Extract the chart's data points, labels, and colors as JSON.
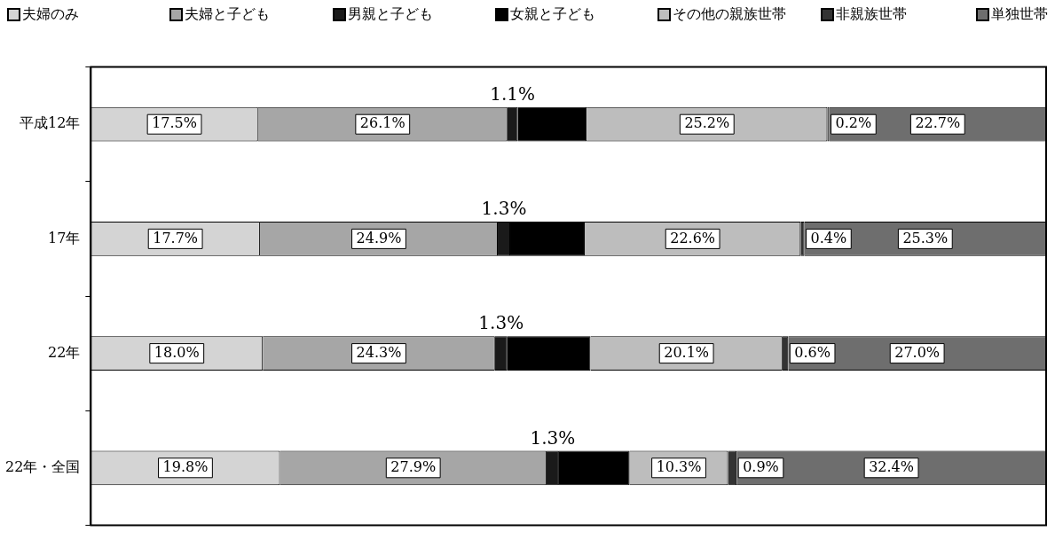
{
  "chart_data": {
    "type": "bar",
    "orientation": "horizontal",
    "stacked": true,
    "legend": "top",
    "categories": [
      "平成12年",
      "17年",
      "22年",
      "22年・全国"
    ],
    "series": [
      {
        "name": "夫婦のみ",
        "color": "#d4d4d4",
        "values": [
          17.5,
          17.7,
          18.0,
          19.8
        ],
        "value_labels": [
          "17.5%",
          "17.7%",
          "18.0%",
          "19.8%"
        ]
      },
      {
        "name": "夫婦と子ども",
        "color": "#a6a6a6",
        "values": [
          26.1,
          24.9,
          24.3,
          27.9
        ],
        "value_labels": [
          "26.1%",
          "24.9%",
          "24.3%",
          "27.9%"
        ]
      },
      {
        "name": "男親と子ども",
        "color": "#1a1a1a",
        "values": [
          1.1,
          1.3,
          1.3,
          1.3
        ],
        "value_labels": [
          "1.1%",
          "1.3%",
          "1.3%",
          "1.3%"
        ]
      },
      {
        "name": "女親と子ども",
        "color": "#000000",
        "values": [
          7.2,
          7.8,
          8.7,
          7.4
        ],
        "value_labels": [
          null,
          null,
          null,
          null
        ]
      },
      {
        "name": "その他の親族世帯",
        "color": "#bdbdbd",
        "values": [
          25.2,
          22.6,
          20.1,
          10.3
        ],
        "value_labels": [
          "25.2%",
          "22.6%",
          "20.1%",
          "10.3%"
        ]
      },
      {
        "name": "非親族世帯",
        "color": "#333333",
        "values": [
          0.2,
          0.4,
          0.6,
          0.9
        ],
        "value_labels": [
          "0.2%",
          "0.4%",
          "0.6%",
          "0.9%"
        ]
      },
      {
        "name": "単独世帯",
        "color": "#6e6e6e",
        "values": [
          22.7,
          25.3,
          27.0,
          32.4
        ],
        "value_labels": [
          "22.7%",
          "25.3%",
          "27.0%",
          "32.4%"
        ]
      }
    ]
  }
}
